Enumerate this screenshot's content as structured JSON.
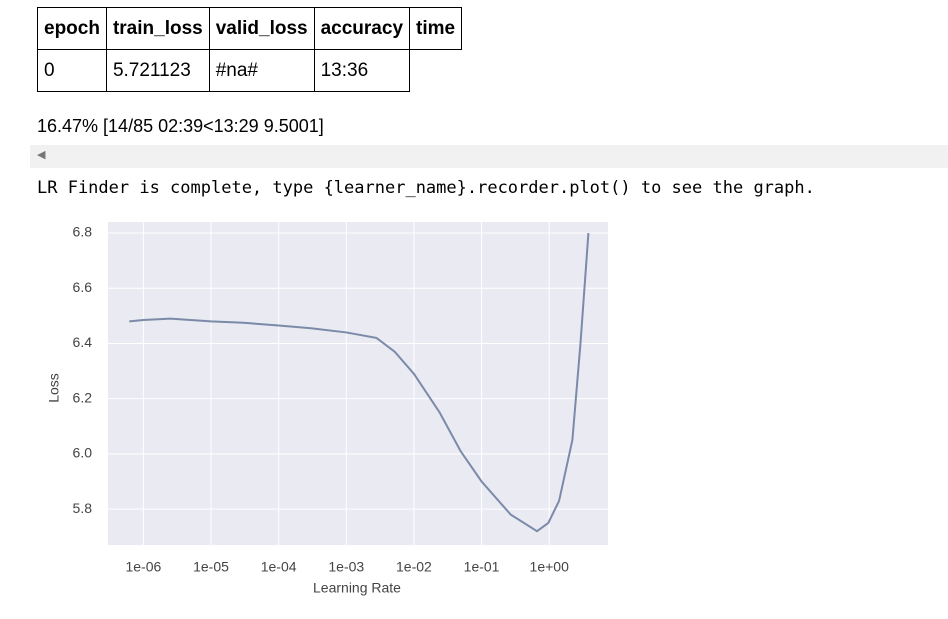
{
  "table": {
    "header": [
      "epoch",
      "train_loss",
      "valid_loss",
      "accuracy",
      "time"
    ],
    "rows": [
      [
        "0",
        "5.721123",
        "#na#",
        "13:36"
      ]
    ]
  },
  "progress": "16.47% [14/85 02:39<13:29 9.5001]",
  "message": "LR Finder is complete, type {learner_name}.recorder.plot() to see the graph.",
  "chart_data": {
    "type": "line",
    "x_label": "Learning Rate",
    "y_label": "Loss",
    "x": [
      6.2e-07,
      1e-06,
      2.5e-06,
      1e-05,
      3e-05,
      0.0001,
      0.0003,
      0.001,
      0.0028,
      0.0052,
      0.01,
      0.024,
      0.049,
      0.1,
      0.27,
      0.66,
      0.97,
      1.4,
      2.2,
      2.9,
      3.8
    ],
    "values": [
      6.48,
      6.485,
      6.49,
      6.48,
      6.475,
      6.465,
      6.455,
      6.44,
      6.42,
      6.37,
      6.29,
      6.15,
      6.01,
      5.9,
      5.78,
      5.72,
      5.75,
      5.83,
      6.05,
      6.4,
      6.8
    ],
    "color": "#7a8aa8",
    "x_log": true,
    "grid": true,
    "xlim": [
      3e-07,
      7.4
    ],
    "ylim": [
      5.67,
      6.84
    ],
    "xticks": [
      {
        "value": 1e-06,
        "label": "1e-06"
      },
      {
        "value": 1e-05,
        "label": "1e-05"
      },
      {
        "value": 0.0001,
        "label": "1e-04"
      },
      {
        "value": 0.001,
        "label": "1e-03"
      },
      {
        "value": 0.01,
        "label": "1e-02"
      },
      {
        "value": 0.1,
        "label": "1e-01"
      },
      {
        "value": 1,
        "label": "1e+00"
      }
    ],
    "yticks": [
      {
        "value": 5.8,
        "label": "5.8"
      },
      {
        "value": 6,
        "label": "6.0"
      },
      {
        "value": 6.2,
        "label": "6.2"
      },
      {
        "value": 6.4,
        "label": "6.4"
      },
      {
        "value": 6.6,
        "label": "6.6"
      },
      {
        "value": 6.8,
        "label": "6.8"
      }
    ]
  }
}
